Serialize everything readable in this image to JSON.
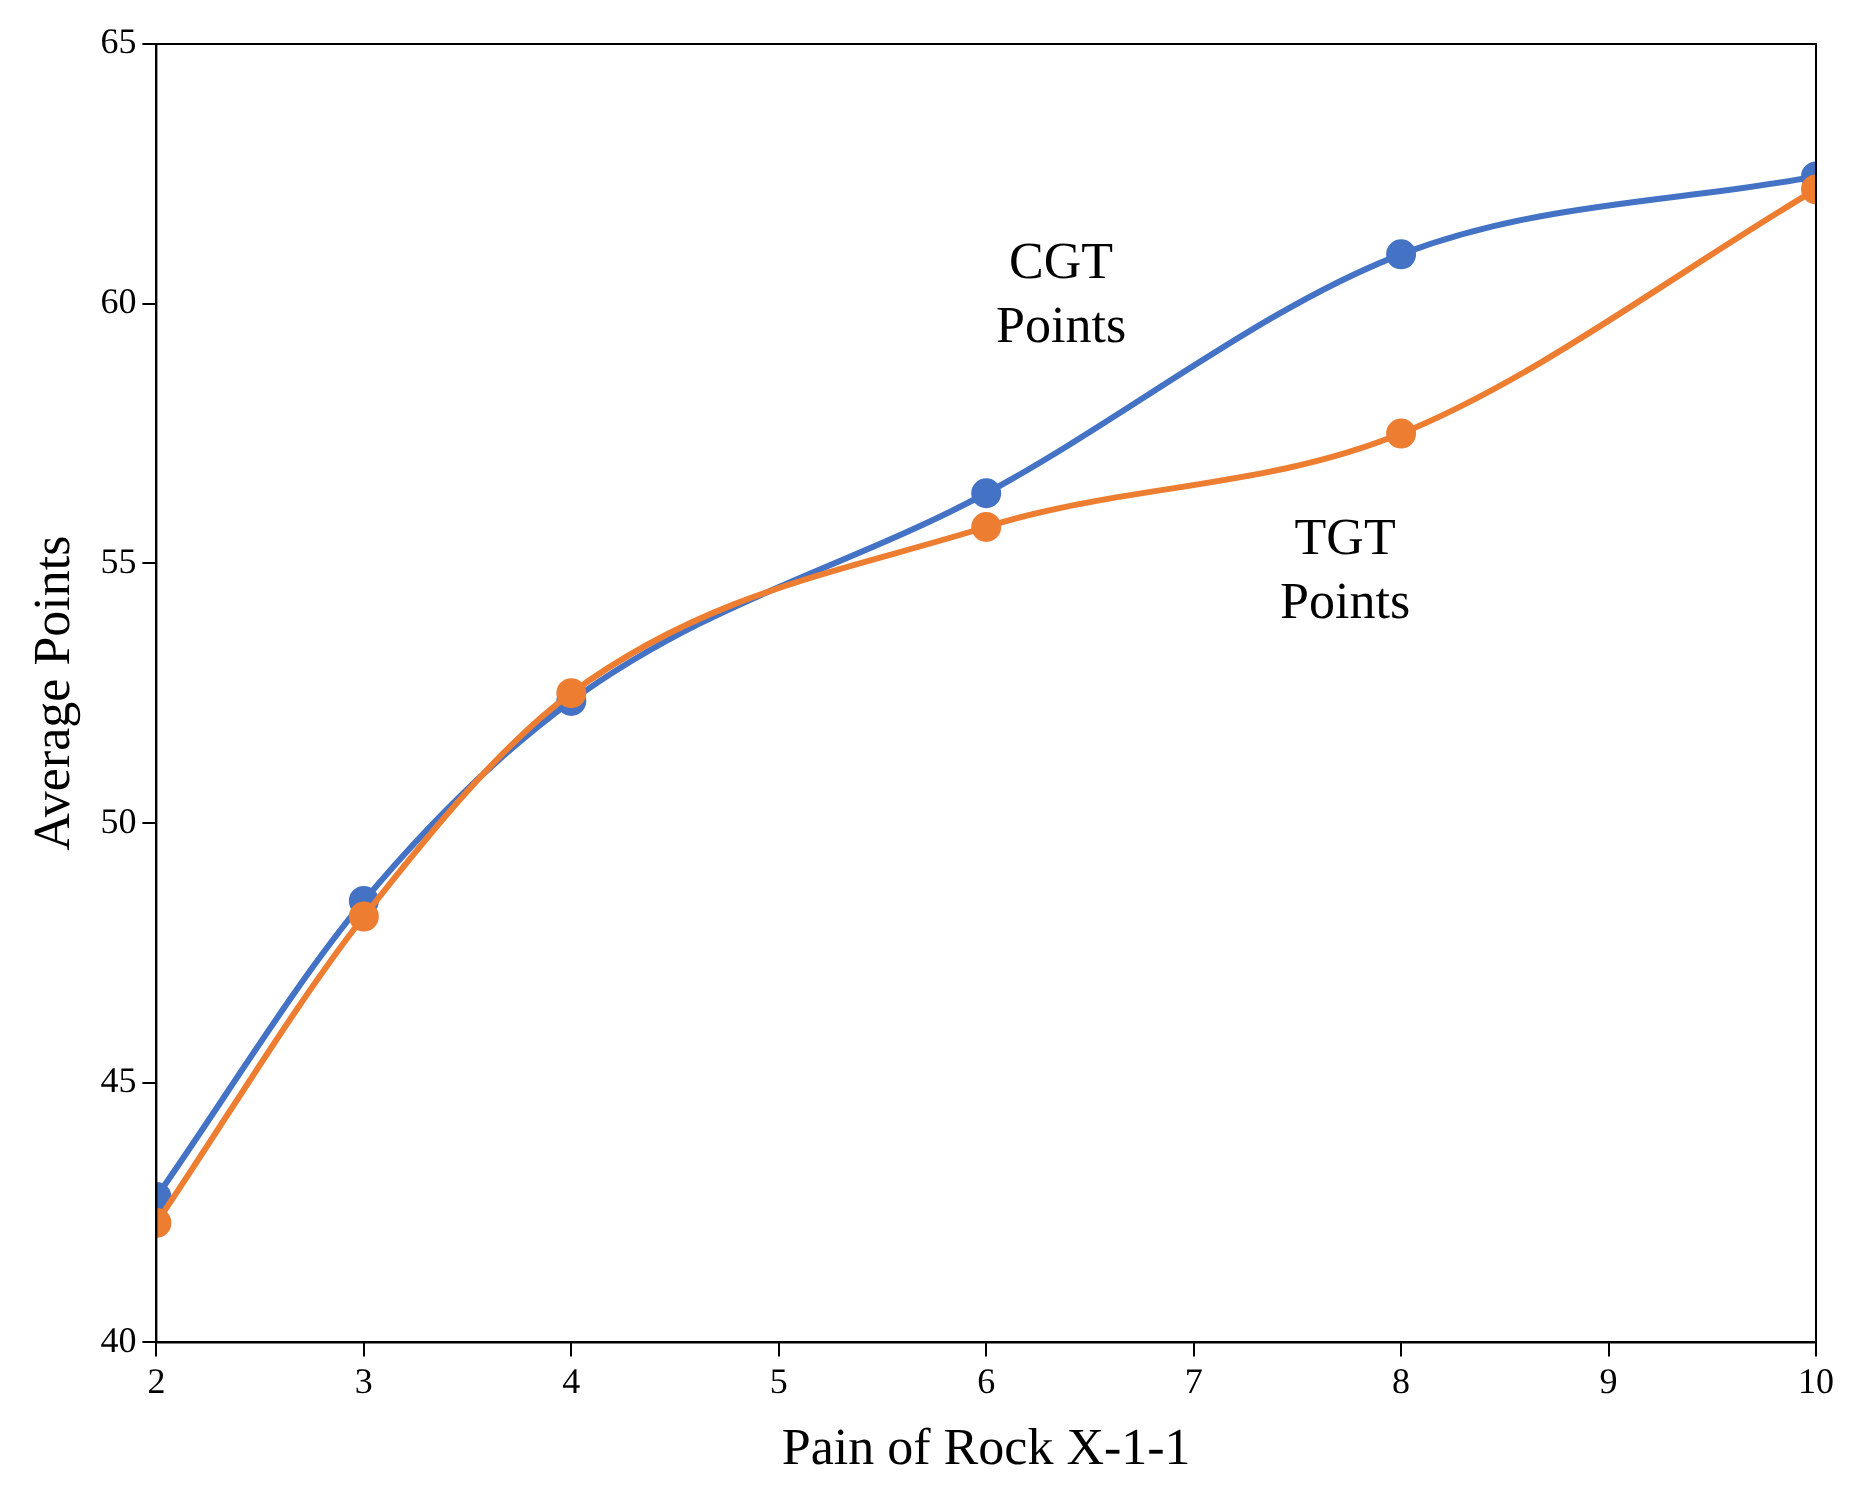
{
  "chart_data": {
    "type": "line",
    "xlabel": "Pain of Rock X-1-1",
    "ylabel": "Average Points",
    "x": [
      2,
      3,
      4,
      6,
      8,
      10
    ],
    "series": [
      {
        "name": "CGT Points",
        "color": "#4472c4",
        "values": [
          42.8,
          48.5,
          52.35,
          56.35,
          60.95,
          62.45
        ]
      },
      {
        "name": "TGT Points",
        "color": "#ed7d31",
        "values": [
          42.3,
          48.2,
          52.5,
          55.7,
          57.5,
          62.2
        ]
      }
    ],
    "xlim": [
      2,
      10
    ],
    "xticks": [
      2,
      3,
      4,
      5,
      6,
      7,
      8,
      9,
      10
    ],
    "ylim": [
      40,
      65
    ],
    "yticks": [
      40,
      45,
      50,
      55,
      60,
      65
    ],
    "grid": false,
    "legend": false,
    "marker": "circle",
    "line_style": "solid"
  }
}
